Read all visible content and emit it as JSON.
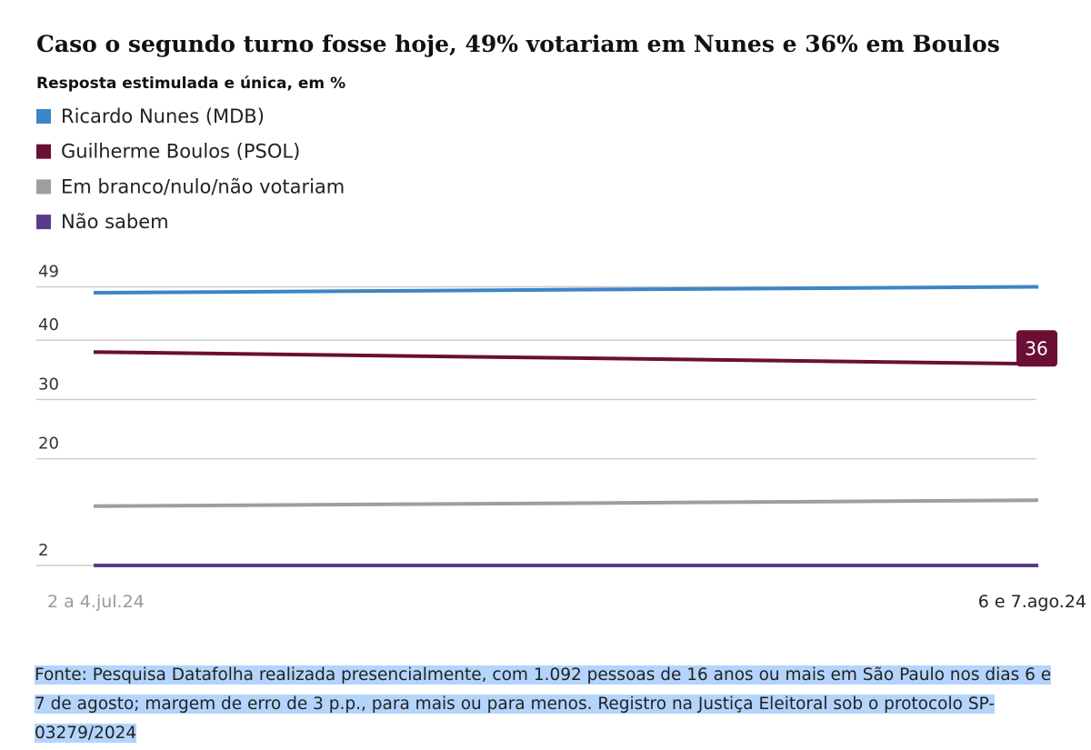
{
  "chart_data": {
    "type": "line",
    "title": "Caso o segundo turno fosse hoje, 49% votariam em Nunes e 36% em Boulos",
    "subtitle": "Resposta estimulada e única, em %",
    "categories": [
      "2 a 4.jul.24",
      "6 e 7.ago.24"
    ],
    "series": [
      {
        "name": "Ricardo Nunes (MDB)",
        "color": "#3d85c6",
        "values": [
          48,
          49
        ]
      },
      {
        "name": "Guilherme Boulos (PSOL)",
        "color": "#6b0f35",
        "values": [
          38,
          36
        ]
      },
      {
        "name": "Em branco/nulo/não votariam",
        "color": "#9e9e9e",
        "values": [
          12,
          13
        ]
      },
      {
        "name": "Não sabem",
        "color": "#5b3a8c",
        "values": [
          2,
          2
        ]
      }
    ],
    "ylim": [
      2,
      50
    ],
    "yticks": [
      49,
      40,
      30,
      20,
      2
    ],
    "grid": true,
    "source": "Fonte: Pesquisa Datafolha realizada presencialmente, com 1.092 pessoas de 16 anos ou mais em São Paulo nos dias 6 e 7 de agosto; margem de erro de 3 p.p., para mais ou para menos. Registro na Justiça Eleitoral sob o protocolo SP-03279/2024"
  }
}
